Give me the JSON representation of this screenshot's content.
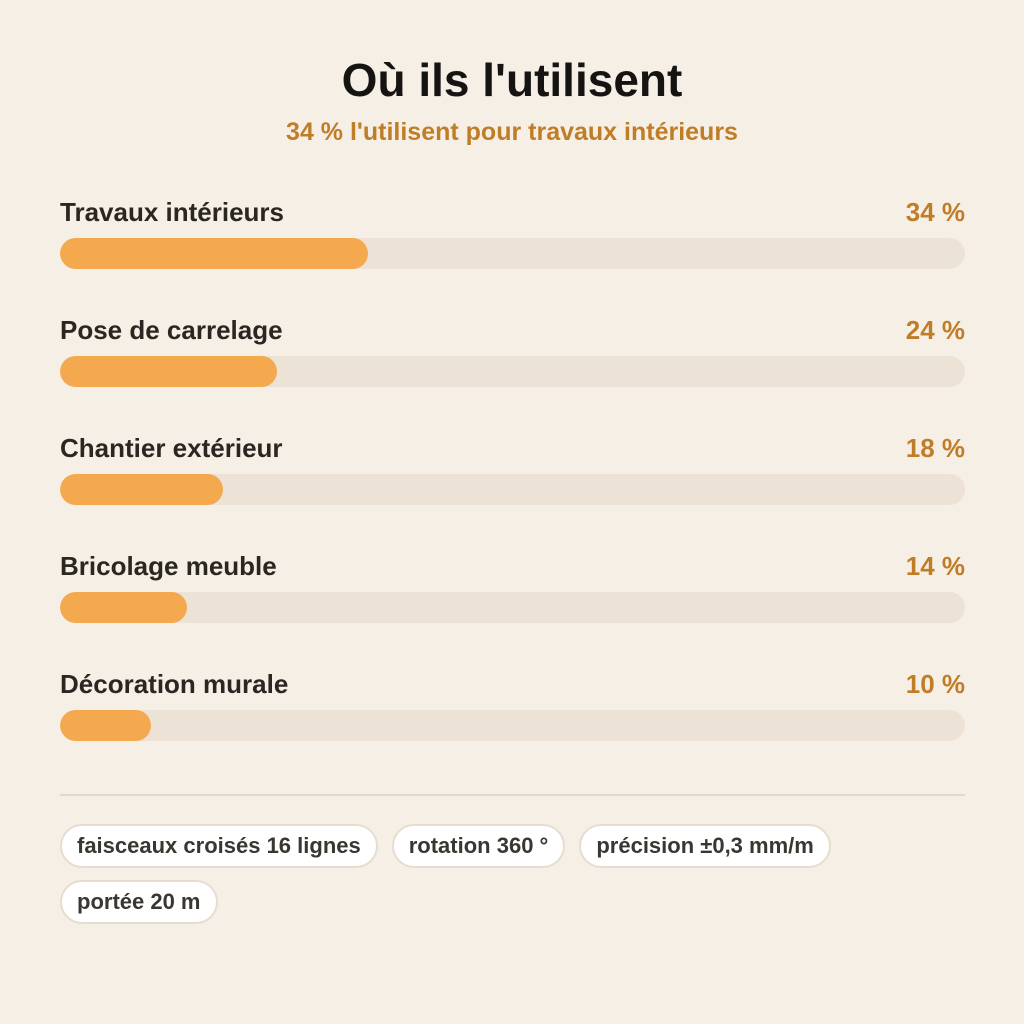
{
  "header": {
    "title": "Où ils l'utilisent",
    "subtitle": "34 % l'utilisent pour travaux intérieurs"
  },
  "chart_data": {
    "type": "bar",
    "orientation": "horizontal",
    "title": "Où ils l'utilisent",
    "subtitle": "34 % l'utilisent pour travaux intérieurs",
    "categories": [
      "Travaux intérieurs",
      "Pose de carrelage",
      "Chantier extérieur",
      "Bricolage meuble",
      "Décoration murale"
    ],
    "values": [
      34,
      24,
      18,
      14,
      10
    ],
    "value_labels": [
      "34 %",
      "24 %",
      "18 %",
      "14 %",
      "10 %"
    ],
    "unit": "%",
    "xlim": [
      0,
      100
    ],
    "colors": {
      "bar": "#f5a94e",
      "track": "#ece2d6",
      "value_text": "#c07d28"
    },
    "grid": false,
    "legend": "none"
  },
  "tags": [
    "faisceaux croisés 16 lignes",
    "rotation 360 °",
    "précision ±0,3 mm/m",
    "portée 20 m"
  ]
}
